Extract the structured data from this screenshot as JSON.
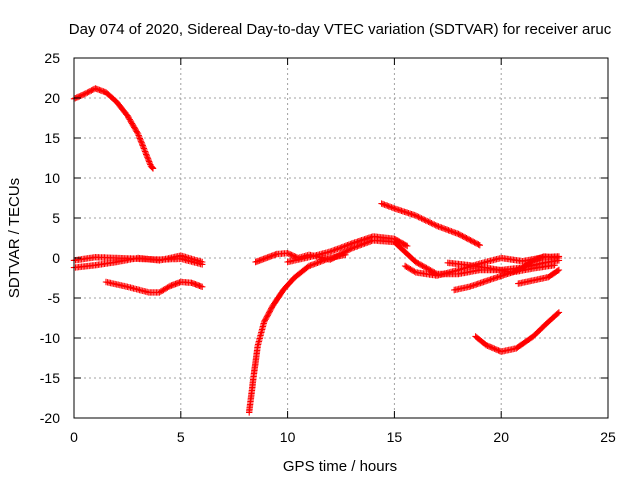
{
  "chart_data": {
    "type": "scatter",
    "title": "Day 074 of 2020, Sidereal Day-to-day VTEC variation (SDTVAR) for receiver aruc",
    "xlabel": "GPS time / hours",
    "ylabel": "SDTVAR / TECUs",
    "xlim": [
      0,
      25
    ],
    "ylim": [
      -20,
      25
    ],
    "xticks": [
      0,
      5,
      10,
      15,
      20,
      25
    ],
    "yticks": [
      -20,
      -15,
      -10,
      -5,
      0,
      5,
      10,
      15,
      20,
      25
    ],
    "grid": true,
    "marker": "+",
    "color": "#ff0000",
    "series": [
      {
        "name": "s1",
        "points": [
          [
            0.0,
            19.9
          ],
          [
            0.5,
            20.5
          ],
          [
            1.0,
            21.2
          ],
          [
            1.5,
            20.7
          ],
          [
            2.0,
            19.5
          ],
          [
            2.5,
            17.8
          ],
          [
            3.0,
            15.5
          ],
          [
            3.3,
            13.5
          ],
          [
            3.6,
            11.5
          ],
          [
            3.7,
            11.2
          ]
        ]
      },
      {
        "name": "s2",
        "points": [
          [
            0.0,
            -0.3
          ],
          [
            1.0,
            0.1
          ],
          [
            2.0,
            0.0
          ],
          [
            3.0,
            -0.1
          ],
          [
            4.0,
            -0.2
          ],
          [
            5.0,
            -0.1
          ],
          [
            6.0,
            -0.8
          ]
        ]
      },
      {
        "name": "s3",
        "points": [
          [
            0.0,
            -1.2
          ],
          [
            1.0,
            -0.9
          ],
          [
            2.0,
            -0.5
          ],
          [
            3.0,
            0.0
          ],
          [
            4.0,
            -0.3
          ],
          [
            5.0,
            0.3
          ],
          [
            6.0,
            -0.5
          ]
        ]
      },
      {
        "name": "s4",
        "points": [
          [
            1.5,
            -3.0
          ],
          [
            2.5,
            -3.6
          ],
          [
            3.5,
            -4.3
          ],
          [
            4.0,
            -4.3
          ],
          [
            4.5,
            -3.5
          ],
          [
            5.0,
            -3.0
          ],
          [
            5.5,
            -3.1
          ],
          [
            6.0,
            -3.6
          ]
        ]
      },
      {
        "name": "s5",
        "points": [
          [
            8.2,
            -19.3
          ],
          [
            8.4,
            -15.0
          ],
          [
            8.6,
            -11.0
          ],
          [
            8.9,
            -8.0
          ],
          [
            9.3,
            -6.0
          ],
          [
            9.8,
            -4.0
          ],
          [
            10.3,
            -2.5
          ],
          [
            11.0,
            -1.0
          ],
          [
            12.0,
            0.0
          ],
          [
            12.7,
            0.4
          ]
        ]
      },
      {
        "name": "s6",
        "points": [
          [
            8.5,
            -0.5
          ],
          [
            9.0,
            0.0
          ],
          [
            9.5,
            0.5
          ],
          [
            10.0,
            0.6
          ],
          [
            10.5,
            0.0
          ],
          [
            11.0,
            0.4
          ],
          [
            12.0,
            -0.2
          ],
          [
            13.0,
            1.2
          ],
          [
            14.0,
            2.2
          ],
          [
            15.0,
            2.0
          ],
          [
            16.0,
            -0.5
          ],
          [
            17.0,
            -2.0
          ],
          [
            18.0,
            -2.0
          ],
          [
            19.0,
            -1.5
          ],
          [
            20.0,
            -1.5
          ],
          [
            21.0,
            -1.2
          ],
          [
            22.0,
            -0.6
          ],
          [
            22.7,
            -0.3
          ]
        ]
      },
      {
        "name": "s7",
        "points": [
          [
            10.0,
            -0.5
          ],
          [
            11.0,
            0.1
          ],
          [
            12.0,
            0.8
          ],
          [
            13.0,
            1.8
          ],
          [
            14.0,
            2.7
          ],
          [
            15.0,
            2.4
          ],
          [
            15.6,
            1.5
          ]
        ]
      },
      {
        "name": "s8",
        "points": [
          [
            14.4,
            6.8
          ],
          [
            15.0,
            6.2
          ],
          [
            16.0,
            5.3
          ],
          [
            17.0,
            4.0
          ],
          [
            18.0,
            3.0
          ],
          [
            19.0,
            1.6
          ]
        ]
      },
      {
        "name": "s9",
        "points": [
          [
            15.5,
            -1.0
          ],
          [
            16.0,
            -1.8
          ],
          [
            17.0,
            -2.2
          ],
          [
            18.0,
            -1.5
          ],
          [
            19.0,
            -0.7
          ],
          [
            20.0,
            0.0
          ],
          [
            21.0,
            -0.4
          ],
          [
            22.0,
            0.1
          ],
          [
            22.7,
            0.2
          ]
        ]
      },
      {
        "name": "s10",
        "points": [
          [
            17.5,
            -0.6
          ],
          [
            18.5,
            -0.9
          ],
          [
            19.5,
            -1.3
          ],
          [
            20.5,
            -1.8
          ],
          [
            21.0,
            -1.2
          ],
          [
            21.5,
            -0.3
          ],
          [
            22.0,
            0.2
          ],
          [
            22.7,
            0.0
          ]
        ]
      },
      {
        "name": "s11",
        "points": [
          [
            17.8,
            -4.0
          ],
          [
            18.5,
            -3.6
          ],
          [
            19.5,
            -2.7
          ],
          [
            20.5,
            -1.8
          ],
          [
            21.5,
            -1.3
          ],
          [
            22.5,
            -0.9
          ]
        ]
      },
      {
        "name": "s12",
        "points": [
          [
            18.8,
            -9.8
          ],
          [
            19.3,
            -10.9
          ],
          [
            20.0,
            -11.7
          ],
          [
            20.7,
            -11.3
          ],
          [
            21.5,
            -9.8
          ],
          [
            22.2,
            -8.0
          ],
          [
            22.7,
            -6.8
          ]
        ]
      },
      {
        "name": "s13",
        "points": [
          [
            20.8,
            -3.2
          ],
          [
            21.5,
            -2.8
          ],
          [
            22.2,
            -2.4
          ],
          [
            22.7,
            -1.5
          ]
        ]
      }
    ]
  }
}
